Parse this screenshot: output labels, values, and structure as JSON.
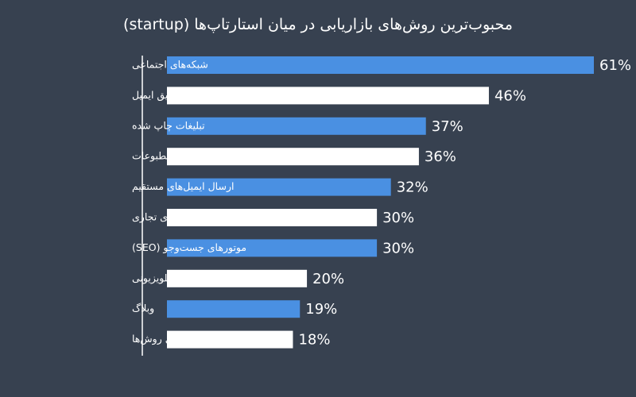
{
  "chart_data": {
    "type": "bar",
    "orientation": "horizontal",
    "title": "محبوب‌ترین روش‌های بازاریابی در میان استارتاپ‌ها (startup)",
    "categories": [
      "شبکه‌های اجتماعی",
      "بازاریابی از طریق ایمیل",
      "تبلیغات چاپ شده",
      "مطبوعات",
      "ارسال ایمیل‌های مستقیم",
      "نمایشگاه‌های تجاری",
      "موتورهای جست‌وجو (SEO)",
      "تبلیغات رادیو/تلویزیونی",
      "وبلاگ",
      "بقیه‌ی روش‌ها"
    ],
    "values": [
      61,
      46,
      37,
      36,
      32,
      30,
      30,
      20,
      19,
      18
    ],
    "value_labels": [
      "61%",
      "46%",
      "37%",
      "36%",
      "32%",
      "30%",
      "30%",
      "20%",
      "19%",
      "18%"
    ],
    "unit": "%",
    "xlim": [
      0,
      61
    ],
    "grid": false,
    "legend": "none",
    "colors": {
      "background": "#374150",
      "bar_primary": "#4a90e2",
      "bar_secondary": "#ffffff",
      "text": "#ffffff",
      "axis": "#ffffff"
    }
  }
}
